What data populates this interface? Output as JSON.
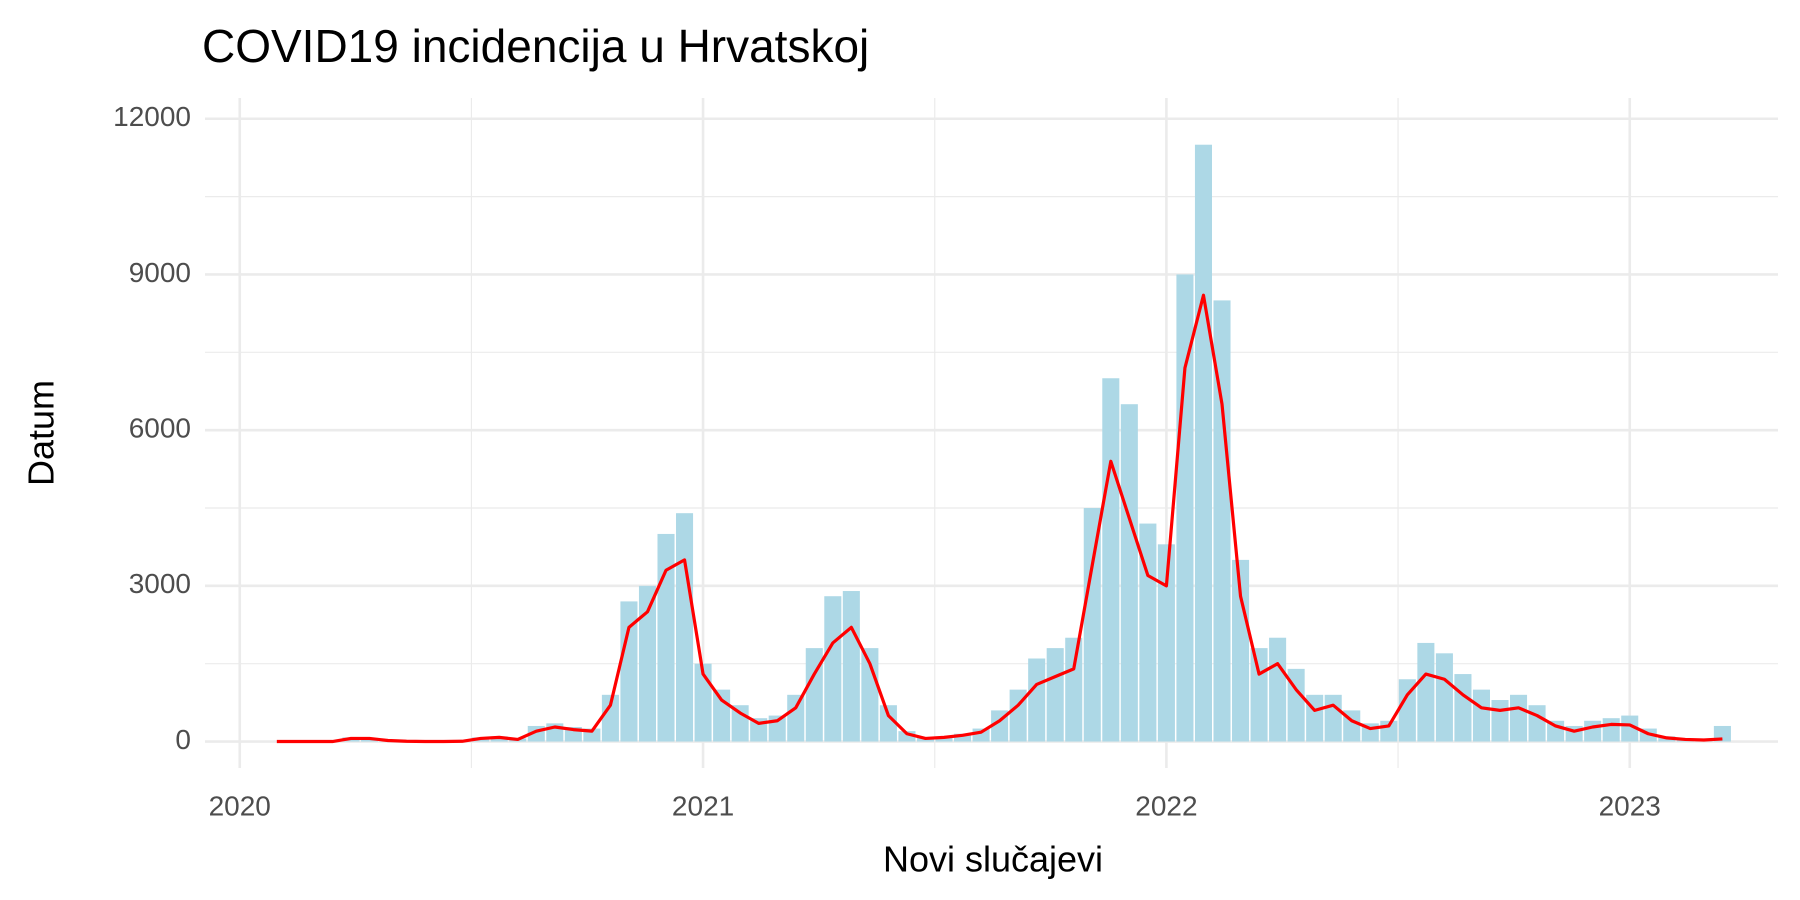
{
  "chart_data": {
    "type": "bar",
    "title": "COVID19 incidencija u Hrvatskoj",
    "x_label": "Novi slučajevi",
    "y_label": "Datum",
    "x": [
      2020.08,
      2020.12,
      2020.16,
      2020.2,
      2020.24,
      2020.28,
      2020.32,
      2020.36,
      2020.4,
      2020.44,
      2020.48,
      2020.52,
      2020.56,
      2020.6,
      2020.64,
      2020.68,
      2020.72,
      2020.76,
      2020.8,
      2020.84,
      2020.88,
      2020.92,
      2020.96,
      2021.0,
      2021.04,
      2021.08,
      2021.12,
      2021.16,
      2021.2,
      2021.24,
      2021.28,
      2021.32,
      2021.36,
      2021.4,
      2021.44,
      2021.48,
      2021.52,
      2021.56,
      2021.6,
      2021.64,
      2021.68,
      2021.72,
      2021.76,
      2021.8,
      2021.84,
      2021.88,
      2021.92,
      2021.96,
      2022.0,
      2022.04,
      2022.08,
      2022.12,
      2022.16,
      2022.2,
      2022.24,
      2022.28,
      2022.32,
      2022.36,
      2022.4,
      2022.44,
      2022.48,
      2022.52,
      2022.56,
      2022.6,
      2022.64,
      2022.68,
      2022.72,
      2022.76,
      2022.8,
      2022.84,
      2022.88,
      2022.92,
      2022.96,
      2023.0,
      2023.04,
      2023.08,
      2023.12,
      2023.16,
      2023.2
    ],
    "series": [
      {
        "type": "bar",
        "color": "#add8e6",
        "values": [
          0,
          0,
          10,
          20,
          80,
          70,
          30,
          10,
          0,
          0,
          10,
          80,
          100,
          60,
          300,
          350,
          280,
          250,
          900,
          2700,
          3000,
          4000,
          4400,
          1500,
          1000,
          700,
          450,
          500,
          900,
          1800,
          2800,
          2900,
          1800,
          700,
          200,
          80,
          100,
          150,
          250,
          600,
          1000,
          1600,
          1800,
          2000,
          4500,
          7000,
          6500,
          4200,
          3800,
          9000,
          11500,
          8500,
          3500,
          1800,
          2000,
          1400,
          900,
          900,
          600,
          350,
          400,
          1200,
          1900,
          1700,
          1300,
          1000,
          800,
          900,
          700,
          400,
          300,
          400,
          450,
          500,
          250,
          100,
          60,
          40,
          300
        ]
      },
      {
        "type": "line",
        "color": "#ff0000",
        "values": [
          0,
          0,
          0,
          0,
          60,
          60,
          20,
          5,
          0,
          0,
          5,
          60,
          80,
          40,
          200,
          280,
          230,
          200,
          700,
          2200,
          2500,
          3300,
          3500,
          1300,
          800,
          550,
          350,
          400,
          650,
          1300,
          1900,
          2200,
          1500,
          500,
          150,
          60,
          80,
          120,
          180,
          400,
          700,
          1100,
          1250,
          1400,
          3400,
          5400,
          4300,
          3200,
          3000,
          7200,
          8600,
          6500,
          2800,
          1300,
          1500,
          1000,
          600,
          700,
          400,
          250,
          300,
          900,
          1300,
          1200,
          900,
          650,
          600,
          650,
          500,
          300,
          200,
          280,
          330,
          320,
          150,
          70,
          40,
          30,
          50
        ]
      }
    ],
    "xlim": [
      2019.925,
      2023.32
    ],
    "xticks": [
      2020,
      2021,
      2022,
      2023
    ],
    "ylim": [
      -510,
      12400
    ],
    "yticks": [
      0,
      3000,
      6000,
      9000,
      12000
    ],
    "grid": true
  }
}
